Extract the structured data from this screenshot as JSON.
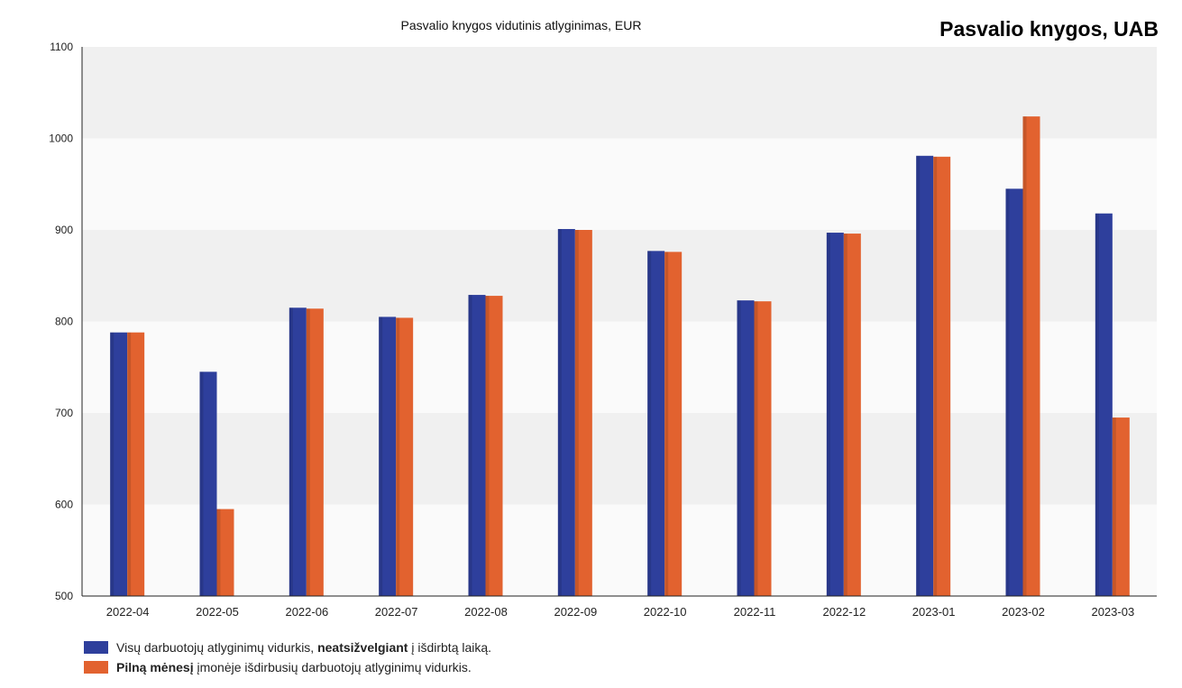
{
  "company": "Pasvalio knygos, UAB",
  "chart_data": {
    "type": "bar",
    "title": "Pasvalio knygos vidutinis atlyginimas, EUR",
    "xlabel": "",
    "ylabel": "",
    "ylim": [
      500,
      1100
    ],
    "yticks": [
      "500",
      "600",
      "700",
      "800",
      "900",
      "1000",
      "1100"
    ],
    "categories": [
      "2022-04",
      "2022-05",
      "2022-06",
      "2022-07",
      "2022-08",
      "2022-09",
      "2022-10",
      "2022-11",
      "2022-12",
      "2023-01",
      "2023-02",
      "2023-03"
    ],
    "series": [
      {
        "values": [
          788,
          745,
          815,
          805,
          829,
          901,
          877,
          823,
          897,
          981,
          945,
          918
        ],
        "color": "#2e3f9c"
      },
      {
        "values": [
          788,
          595,
          814,
          804,
          828,
          900,
          876,
          822,
          896,
          980,
          1024,
          695
        ],
        "color": "#e2622f"
      }
    ],
    "grid": "alternating horizontal bands",
    "legend_position": "bottom-left"
  },
  "legend": {
    "item1": {
      "pre": "Visų darbuotojų atlyginimų vidurkis, ",
      "bold": "neatsižvelgiant",
      "post": " į išdirbtą laiką."
    },
    "item2": {
      "pre": "",
      "bold": "Pilną mėnesį",
      "post": " įmonėje išdirbusių darbuotojų atlyginimų vidurkis."
    }
  }
}
